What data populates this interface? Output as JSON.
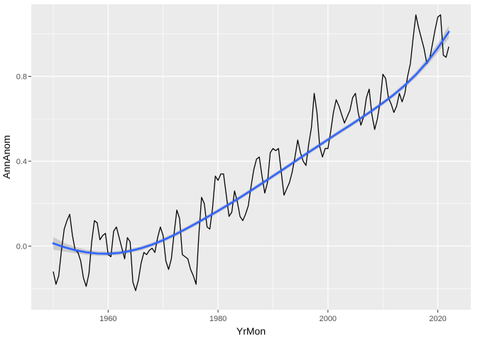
{
  "chart_data": {
    "type": "line",
    "title": "",
    "xlabel": "YrMon",
    "ylabel": "AnnAnom",
    "xlim": [
      1946,
      2026
    ],
    "ylim": [
      -0.3,
      1.14
    ],
    "x_ticks": [
      1960,
      1980,
      2000,
      2020
    ],
    "x_tick_labels": [
      "1960",
      "1980",
      "2000",
      "2020"
    ],
    "y_ticks": [
      0.0,
      0.4,
      0.8
    ],
    "y_tick_labels": [
      "0.0",
      "0.4",
      "0.8"
    ],
    "grid": true,
    "background": "#ebebeb",
    "series": [
      {
        "style": "line",
        "color": "#000000",
        "x": [
          1950.0,
          1950.5,
          1951.0,
          1951.5,
          1952.0,
          1952.5,
          1953.0,
          1953.5,
          1954.0,
          1954.5,
          1955.0,
          1955.5,
          1956.0,
          1956.5,
          1957.0,
          1957.5,
          1958.0,
          1958.5,
          1959.0,
          1959.5,
          1960.0,
          1960.5,
          1961.0,
          1961.5,
          1962.0,
          1962.5,
          1963.0,
          1963.5,
          1964.0,
          1964.5,
          1965.0,
          1965.5,
          1966.0,
          1966.5,
          1967.0,
          1967.5,
          1968.0,
          1968.5,
          1969.0,
          1969.5,
          1970.0,
          1970.5,
          1971.0,
          1971.5,
          1972.0,
          1972.5,
          1973.0,
          1973.5,
          1974.0,
          1974.5,
          1975.0,
          1975.5,
          1976.0,
          1976.5,
          1977.0,
          1977.5,
          1978.0,
          1978.5,
          1979.0,
          1979.5,
          1980.0,
          1980.5,
          1981.0,
          1981.5,
          1982.0,
          1982.5,
          1983.0,
          1983.5,
          1984.0,
          1984.5,
          1985.0,
          1985.5,
          1986.0,
          1986.5,
          1987.0,
          1987.5,
          1988.0,
          1988.5,
          1989.0,
          1989.5,
          1990.0,
          1990.5,
          1991.0,
          1991.5,
          1992.0,
          1992.5,
          1993.0,
          1993.5,
          1994.0,
          1994.5,
          1995.0,
          1995.5,
          1996.0,
          1996.5,
          1997.0,
          1997.5,
          1998.0,
          1998.5,
          1999.0,
          1999.5,
          2000.0,
          2000.5,
          2001.0,
          2001.5,
          2002.0,
          2002.5,
          2003.0,
          2003.5,
          2004.0,
          2004.5,
          2005.0,
          2005.5,
          2006.0,
          2006.5,
          2007.0,
          2007.5,
          2008.0,
          2008.5,
          2009.0,
          2009.5,
          2010.0,
          2010.5,
          2011.0,
          2011.5,
          2012.0,
          2012.5,
          2013.0,
          2013.5,
          2014.0,
          2014.5,
          2015.0,
          2015.5,
          2016.0,
          2016.5,
          2017.0,
          2017.5,
          2018.0,
          2018.5,
          2019.0,
          2019.5,
          2020.0,
          2020.5,
          2021.0,
          2021.5,
          2022.0
        ],
        "y": [
          -0.12,
          -0.18,
          -0.14,
          -0.02,
          0.08,
          0.12,
          0.15,
          0.05,
          -0.02,
          -0.03,
          -0.07,
          -0.15,
          -0.19,
          -0.13,
          0.02,
          0.12,
          0.11,
          0.03,
          0.05,
          0.06,
          -0.04,
          -0.05,
          0.07,
          0.09,
          0.04,
          -0.01,
          -0.06,
          0.04,
          0.02,
          -0.17,
          -0.21,
          -0.16,
          -0.08,
          -0.03,
          -0.04,
          -0.02,
          -0.01,
          -0.03,
          0.04,
          0.09,
          0.05,
          -0.07,
          -0.11,
          -0.06,
          0.06,
          0.17,
          0.13,
          -0.04,
          -0.05,
          -0.06,
          -0.11,
          -0.14,
          -0.18,
          0.05,
          0.23,
          0.2,
          0.09,
          0.08,
          0.18,
          0.33,
          0.31,
          0.34,
          0.34,
          0.24,
          0.14,
          0.16,
          0.26,
          0.21,
          0.14,
          0.12,
          0.15,
          0.19,
          0.28,
          0.36,
          0.41,
          0.42,
          0.33,
          0.25,
          0.3,
          0.44,
          0.46,
          0.45,
          0.46,
          0.35,
          0.24,
          0.27,
          0.3,
          0.35,
          0.42,
          0.5,
          0.44,
          0.4,
          0.38,
          0.48,
          0.56,
          0.72,
          0.63,
          0.47,
          0.42,
          0.46,
          0.46,
          0.54,
          0.63,
          0.69,
          0.66,
          0.62,
          0.58,
          0.61,
          0.64,
          0.7,
          0.72,
          0.63,
          0.57,
          0.61,
          0.7,
          0.74,
          0.62,
          0.55,
          0.6,
          0.68,
          0.81,
          0.79,
          0.7,
          0.67,
          0.63,
          0.66,
          0.72,
          0.68,
          0.72,
          0.8,
          0.86,
          0.98,
          1.09,
          1.03,
          0.98,
          0.93,
          0.86,
          0.88,
          0.95,
          1.02,
          1.08,
          1.09,
          0.9,
          0.89,
          0.94
        ]
      },
      {
        "style": "smooth",
        "color": "#3366ff",
        "band_color": "#bfbfbf",
        "x": [
          1950,
          1952,
          1954,
          1956,
          1958,
          1960,
          1962,
          1964,
          1966,
          1968,
          1970,
          1972,
          1974,
          1976,
          1978,
          1980,
          1982,
          1984,
          1986,
          1988,
          1990,
          1992,
          1994,
          1996,
          1998,
          2000,
          2002,
          2004,
          2006,
          2008,
          2010,
          2012,
          2014,
          2016,
          2018,
          2020,
          2022
        ],
        "y": [
          0.013,
          -0.005,
          -0.019,
          -0.029,
          -0.035,
          -0.036,
          -0.032,
          -0.023,
          -0.01,
          0.007,
          0.028,
          0.052,
          0.079,
          0.107,
          0.136,
          0.166,
          0.197,
          0.229,
          0.262,
          0.296,
          0.33,
          0.364,
          0.399,
          0.434,
          0.468,
          0.502,
          0.536,
          0.569,
          0.603,
          0.638,
          0.675,
          0.714,
          0.758,
          0.808,
          0.866,
          0.934,
          1.01
        ],
        "band_halfwidth": [
          0.03,
          0.02,
          0.015,
          0.012,
          0.011,
          0.01,
          0.01,
          0.01,
          0.01,
          0.01,
          0.01,
          0.01,
          0.01,
          0.01,
          0.01,
          0.01,
          0.01,
          0.01,
          0.01,
          0.01,
          0.01,
          0.01,
          0.01,
          0.01,
          0.01,
          0.01,
          0.01,
          0.01,
          0.01,
          0.01,
          0.01,
          0.011,
          0.012,
          0.014,
          0.017,
          0.022,
          0.03
        ]
      }
    ]
  }
}
